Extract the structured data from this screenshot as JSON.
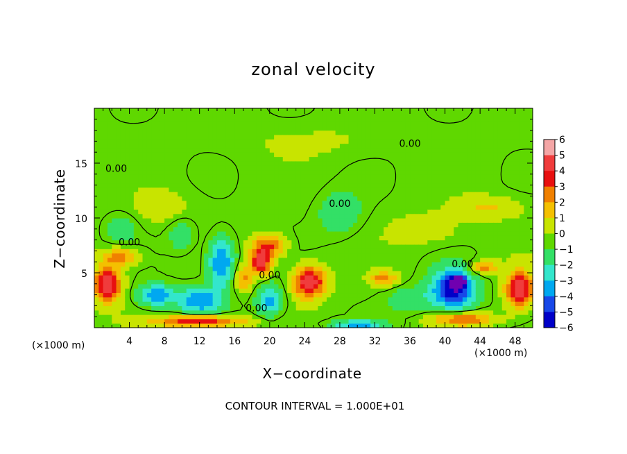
{
  "chart_data": {
    "type": "heatmap",
    "title": "zonal velocity",
    "xlabel": "X−coordinate",
    "ylabel": "Z−coordinate",
    "x_unit_label": "(×1000 m)",
    "x_unit_label_right": "(×1000 m)",
    "xlim": [
      0,
      50
    ],
    "ylim": [
      0,
      20
    ],
    "x_ticks": [
      4,
      8,
      12,
      16,
      20,
      24,
      28,
      32,
      36,
      40,
      44,
      48
    ],
    "x_tick_labels": [
      "4",
      "8",
      "12",
      "16",
      "20",
      "24",
      "28",
      "32",
      "36",
      "40",
      "44",
      "48"
    ],
    "y_ticks": [
      5,
      10,
      15
    ],
    "y_tick_labels": [
      "5",
      "10",
      "15"
    ],
    "contour_interval_label": "CONTOUR INTERVAL = 1.000E+01",
    "contour_labels": [
      {
        "text": "0.00",
        "x": 2.5,
        "z": 14.2
      },
      {
        "text": "0.00",
        "x": 4.0,
        "z": 7.5
      },
      {
        "text": "0.00",
        "x": 18.5,
        "z": 1.5
      },
      {
        "text": "0.00",
        "x": 20.0,
        "z": 4.5
      },
      {
        "text": "0.00",
        "x": 28.0,
        "z": 11.0
      },
      {
        "text": "0.00",
        "x": 36.0,
        "z": 16.5
      },
      {
        "text": "0.00",
        "x": 42.0,
        "z": 5.5
      }
    ],
    "colorbar": {
      "levels": [
        6,
        5,
        4,
        3,
        2,
        1,
        0,
        -1,
        -2,
        -3,
        -4,
        -5,
        -6
      ],
      "labels": [
        "6",
        "5",
        "4",
        "3",
        "2",
        "1",
        "0",
        "−1",
        "−2",
        "−3",
        "−4",
        "−5",
        "−6"
      ],
      "colors": [
        "#f4a6a6",
        "#f03c3c",
        "#e81010",
        "#f08000",
        "#f4c000",
        "#c8e400",
        "#5fd800",
        "#33e066",
        "#33e6cc",
        "#00a8f0",
        "#1848e8",
        "#0000c8",
        "#7000b0"
      ]
    },
    "features": [
      {
        "x": 19,
        "z": 6.0,
        "u": 5.0,
        "rx": 1.2,
        "rz": 1.2
      },
      {
        "x": 24.5,
        "z": 4.2,
        "u": 5.5,
        "rx": 1.8,
        "rz": 1.4
      },
      {
        "x": 20,
        "z": 7.5,
        "u": 3.5,
        "rx": 1.8,
        "rz": 1.0
      },
      {
        "x": 17,
        "z": 4.5,
        "u": 2.5,
        "rx": 1.0,
        "rz": 1.2
      },
      {
        "x": 14.5,
        "z": 6.0,
        "u": -4.0,
        "rx": 1.5,
        "rz": 2.2
      },
      {
        "x": 12,
        "z": 2.5,
        "u": -3.5,
        "rx": 2.5,
        "rz": 1.2
      },
      {
        "x": 7,
        "z": 3.0,
        "u": -3.5,
        "rx": 2.0,
        "rz": 1.0
      },
      {
        "x": 20,
        "z": 2.5,
        "u": -3.0,
        "rx": 1.5,
        "rz": 1.5
      },
      {
        "x": 41,
        "z": 3.5,
        "u": -5.5,
        "rx": 2.5,
        "rz": 1.8
      },
      {
        "x": 41.5,
        "z": 4.2,
        "u": -6.5,
        "rx": 0.8,
        "rz": 0.5
      },
      {
        "x": 1.5,
        "z": 4.0,
        "u": 5.5,
        "rx": 1.5,
        "rz": 1.6
      },
      {
        "x": 48.5,
        "z": 3.5,
        "u": 5.5,
        "rx": 1.5,
        "rz": 1.6
      },
      {
        "x": 3,
        "z": 6.5,
        "u": 3.0,
        "rx": 2.0,
        "rz": 0.8
      },
      {
        "x": 44.5,
        "z": 5.5,
        "u": 3.0,
        "rx": 1.5,
        "rz": 0.6
      },
      {
        "x": 33,
        "z": 4.5,
        "u": 3.0,
        "rx": 1.5,
        "rz": 0.6
      },
      {
        "x": 12,
        "z": 0.6,
        "u": 4.5,
        "rx": 5.0,
        "rz": 0.5
      },
      {
        "x": 42,
        "z": 0.8,
        "u": 3.5,
        "rx": 3.5,
        "rz": 0.6
      },
      {
        "x": 30,
        "z": 0.3,
        "u": -3.0,
        "rx": 3.0,
        "rz": 0.4
      },
      {
        "x": 36,
        "z": 2.5,
        "u": -1.5,
        "rx": 2.5,
        "rz": 1.2
      },
      {
        "x": 28,
        "z": 10.5,
        "u": -1.5,
        "rx": 2.5,
        "rz": 2.0
      },
      {
        "x": 3,
        "z": 9.0,
        "u": -1.5,
        "rx": 1.5,
        "rz": 1.2
      },
      {
        "x": 10,
        "z": 8.5,
        "u": -1.5,
        "rx": 1.5,
        "rz": 1.5
      },
      {
        "x": 45,
        "z": 11.0,
        "u": 1.5,
        "rx": 3.5,
        "rz": 1.0
      },
      {
        "x": 38,
        "z": 9.0,
        "u": 1.0,
        "rx": 4.0,
        "rz": 1.5
      },
      {
        "x": 8,
        "z": 11.0,
        "u": 1.0,
        "rx": 3.0,
        "rz": 1.5
      },
      {
        "x": 25,
        "z": 17.0,
        "u": 0.5,
        "rx": 8.0,
        "rz": 1.5
      }
    ]
  }
}
